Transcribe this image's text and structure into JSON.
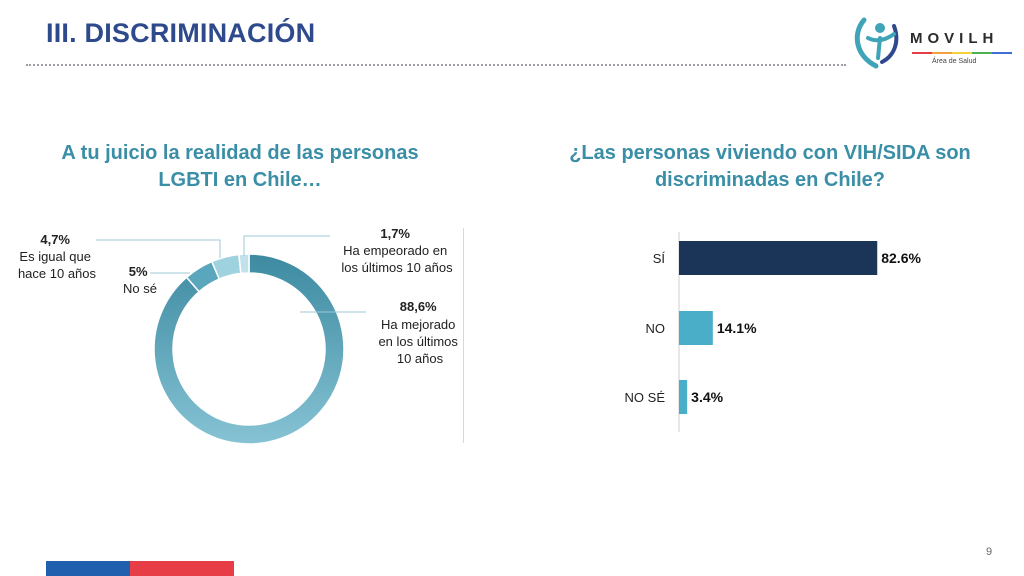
{
  "header": {
    "title": "III. DISCRIMINACIÓN",
    "logo_text": "MOVILH",
    "logo_subtitle": "Área de Salud"
  },
  "page_number": "9",
  "colors": {
    "title": "#2e4a8c",
    "question": "#3a8ea6",
    "bar_si": "#1b3558",
    "bar_other": "#4baec9",
    "donut_main": "#6cb1c6",
    "donut_alt": "#9fd2df",
    "footer_blue": "#1f5fae",
    "footer_red": "#e63d47"
  },
  "chart_data": [
    {
      "type": "pie",
      "title": "A tu juicio la realidad de las personas LGBTI en Chile…",
      "slices": [
        {
          "label": "Ha mejorado en los últimos 10 años",
          "value": 88.6,
          "display": "88,6%"
        },
        {
          "label": "No sé",
          "value": 5,
          "display": "5%"
        },
        {
          "label": "Es igual que hace 10 años",
          "value": 4.7,
          "display": "4,7%"
        },
        {
          "label": "Ha empeorado en los últimos 10 años",
          "value": 1.7,
          "display": "1,7%"
        }
      ],
      "label_lines": {
        "mejorado": [
          "88,6%",
          "Ha mejorado",
          "en los últimos",
          "10 años"
        ],
        "nose": [
          "5%",
          "No sé"
        ],
        "igual": [
          "4,7%",
          "Es igual que",
          "hace 10 años"
        ],
        "empeorado": [
          "1,7%",
          "Ha empeorado en",
          "los últimos 10 años"
        ]
      }
    },
    {
      "type": "bar",
      "orientation": "horizontal",
      "title": "¿Las personas viviendo con VIH/SIDA son discriminadas en Chile?",
      "categories": [
        "SÍ",
        "NO",
        "NO SÉ"
      ],
      "values": [
        82.6,
        14.1,
        3.4
      ],
      "value_labels": [
        "82.6%",
        "14.1%",
        "3.4%"
      ],
      "xlim": [
        0,
        100
      ]
    }
  ]
}
